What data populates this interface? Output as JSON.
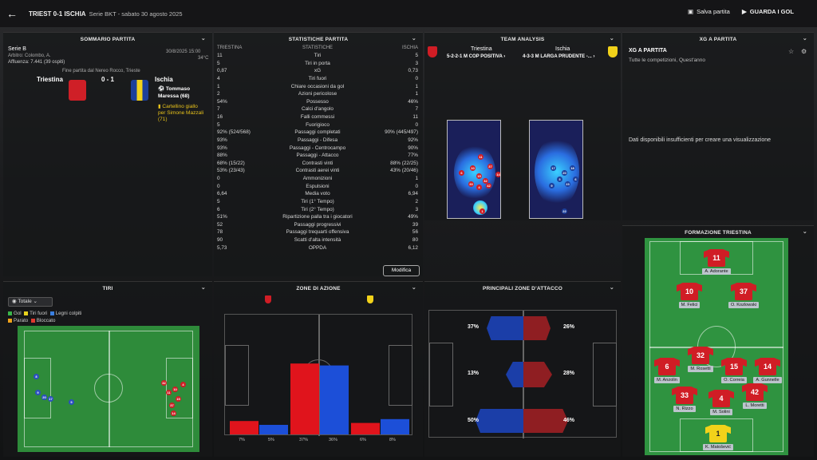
{
  "topbar": {
    "title": "TRIEST 0-1 ISCHIA",
    "subtitle": "Serie BKT - sabato 30 agosto 2025",
    "save": "Salva partita",
    "watch": "GUARDA I GOL"
  },
  "summary": {
    "header": "SOMMARIO PARTITA",
    "league": "Serie B",
    "date": "30/8/2025 15:00",
    "referee": "Arbitro: Colombo, A.",
    "temp": "34°C",
    "attendance": "Affluenza: 7.441 (39 ospiti)",
    "venue": "Fine partita dal Nereo Rocco, Trieste",
    "home": "Triestina",
    "score": "0 - 1",
    "away": "Ischia",
    "scorer": "Tommaso Maressa (68)",
    "card": "Cartellino giallo per Simone Mazzali (71)"
  },
  "stats": {
    "header": "STATISTICHE PARTITA",
    "home": "TRIESTINA",
    "mid": "STATISTICHE",
    "away": "ISCHIA",
    "edit": "Modifica",
    "rows": [
      [
        "11",
        "Tiri",
        "5"
      ],
      [
        "5",
        "Tiri in porta",
        "3"
      ],
      [
        "0,87",
        "xG",
        "0,73"
      ],
      [
        "4",
        "Tiri fuori",
        "0"
      ],
      [
        "1",
        "Chiare occasioni da gol",
        "1"
      ],
      [
        "2",
        "Azioni pericolose",
        "1"
      ],
      [
        "54%",
        "Possesso",
        "46%"
      ],
      [
        "7",
        "Calci d'angolo",
        "7"
      ],
      [
        "16",
        "Falli commessi",
        "11"
      ],
      [
        "5",
        "Fuorigioco",
        "0"
      ],
      [
        "92% (524/568)",
        "Passaggi completati",
        "90% (445/497)"
      ],
      [
        "93%",
        "Passaggi - Difesa",
        "92%"
      ],
      [
        "93%",
        "Passaggi - Centrocampo",
        "90%"
      ],
      [
        "88%",
        "Passaggi - Attacco",
        "77%"
      ],
      [
        "68% (15/22)",
        "Contrasti vinti",
        "88% (22/25)"
      ],
      [
        "53% (23/43)",
        "Contrasti aerei vinti",
        "43% (20/46)"
      ],
      [
        "0",
        "Ammonizioni",
        "1"
      ],
      [
        "0",
        "Espulsioni",
        "0"
      ],
      [
        "6,64",
        "Media voto",
        "6,94"
      ],
      [
        "5",
        "Tiri (1° Tempo)",
        "2"
      ],
      [
        "6",
        "Tiri (2° Tempo)",
        "3"
      ],
      [
        "51%",
        "Ripartizione palla tra i giocatori",
        "49%"
      ],
      [
        "52",
        "Passaggi progressivi",
        "39"
      ],
      [
        "78",
        "Passaggi trequarti offensiva",
        "56"
      ],
      [
        "90",
        "Scatti d'alta intensità",
        "80"
      ],
      [
        "5,73",
        "OPPDA",
        "6,12"
      ]
    ]
  },
  "analysis": {
    "header": "TEAM ANALYSIS",
    "home": "Triestina",
    "home_form": "5-2-2-1 M COP POSITIVA ›",
    "away": "Ischia",
    "away_form": "4-3-3 M LARGA PRUDENTE -... ›"
  },
  "xg": {
    "header": "XG A PARTITA",
    "title": "XG A PARTITA",
    "sub": "Tutte le competizioni, Quest'anno",
    "empty": "Dati disponibili insufficienti per creare una visualizzazione"
  },
  "shots": {
    "header": "TIRI",
    "filter": "Totale",
    "legend": [
      "Gol",
      "Tiri fuori",
      "Legni colpiti",
      "Parato",
      "Bloccato"
    ],
    "colors": [
      "#3bb54a",
      "#e8d21d",
      "#3a7fe0",
      "#f0a21a",
      "#e0392f"
    ]
  },
  "zones": {
    "header": "ZONE DI AZIONE",
    "values": [
      7,
      5,
      37,
      36,
      6,
      8
    ],
    "labels": [
      "7%",
      "5%",
      "37%",
      "36%",
      "6%",
      "8%"
    ]
  },
  "attack": {
    "header": "PRINCIPALI ZONE D'ATTACCO",
    "home": [
      "37%",
      "13%",
      "50%"
    ],
    "away": [
      "26%",
      "28%",
      "46%"
    ]
  },
  "lineup": {
    "header": "FORMAZIONE TRIESTINA",
    "players": [
      {
        "num": "11",
        "name": "A. Adorante"
      },
      {
        "num": "10",
        "name": "M. Felici"
      },
      {
        "num": "37",
        "name": "O. Kozlowski"
      },
      {
        "num": "6",
        "name": "M. Anzolin"
      },
      {
        "num": "32",
        "name": "M. Rosetti"
      },
      {
        "num": "15",
        "name": "O. Correia"
      },
      {
        "num": "14",
        "name": "A. Gunnelle"
      },
      {
        "num": "33",
        "name": "N. Rizzo"
      },
      {
        "num": "4",
        "name": "M. Solini"
      },
      {
        "num": "42",
        "name": "L. Moretti"
      },
      {
        "num": "1",
        "name": "K. Matošević"
      }
    ]
  }
}
